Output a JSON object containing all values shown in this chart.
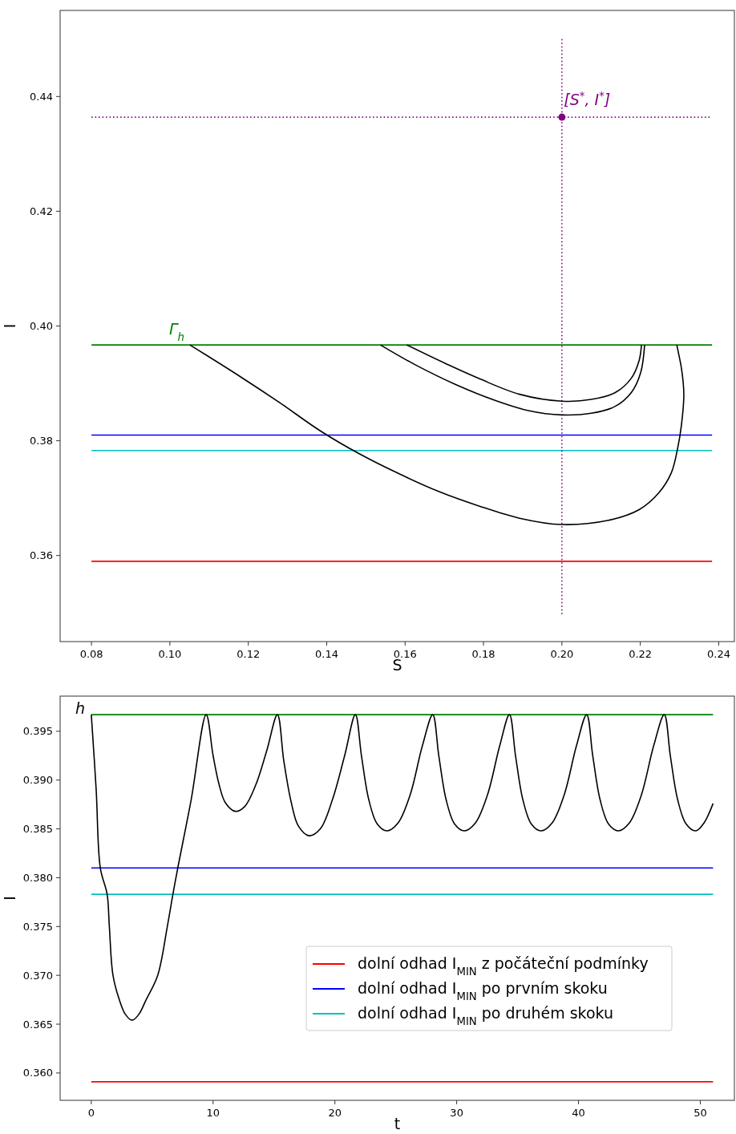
{
  "chart_data": [
    {
      "type": "line",
      "xlabel": "S",
      "ylabel": "I",
      "xlim": [
        0.072,
        0.244
      ],
      "ylim": [
        0.345,
        0.455
      ],
      "xticks": [
        {
          "value": 0.08,
          "label": "0.08"
        },
        {
          "value": 0.1,
          "label": "0.10"
        },
        {
          "value": 0.12,
          "label": "0.12"
        },
        {
          "value": 0.14,
          "label": "0.14"
        },
        {
          "value": 0.16,
          "label": "0.16"
        },
        {
          "value": 0.18,
          "label": "0.18"
        },
        {
          "value": 0.2,
          "label": "0.20"
        },
        {
          "value": 0.22,
          "label": "0.22"
        },
        {
          "value": 0.24,
          "label": "0.24"
        }
      ],
      "yticks": [
        0.36,
        0.38,
        {
          "value": 0.4,
          "label": "0.40"
        },
        0.42,
        0.44
      ],
      "annotations": [
        "Γ$_{h}$",
        {
          "text": "[S$^{*}$, I$^{*}$]",
          "x": 0.2005,
          "y": 0.4385
        }
      ],
      "series": [
        {
          "color": "#008000",
          "x": [
            0.08,
            0.2383
          ],
          "values": [
            0.3967,
            0.3967
          ]
        },
        {
          "color": "#0000ff",
          "x": [
            0.08,
            0.2383
          ],
          "values": [
            0.381,
            0.381
          ]
        },
        {
          "color": "#00bfbf",
          "x": [
            0.08,
            0.2383
          ],
          "values": [
            0.3783,
            0.3783
          ]
        },
        {
          "color": "#ff0000",
          "x": [
            0.08,
            0.2383
          ],
          "values": [
            0.359,
            0.359
          ]
        },
        {
          "color": "#800080",
          "line_style": "dotted",
          "x": [
            0.08,
            0.2383
          ],
          "values": [
            0.4364,
            0.4364
          ]
        },
        {
          "color": "#800080",
          "line_style": "dotted",
          "x": [
            0.2,
            0.2
          ],
          "values": [
            0.3498,
            0.45
          ]
        },
        {
          "type": "scatter",
          "marker": "circle",
          "color": "#800080",
          "x": [
            0.2
          ],
          "values": [
            0.4364
          ]
        },
        {
          "color": "#000000",
          "x": [
            0.1051,
            0.1179,
            0.1281,
            0.1382,
            0.1484,
            0.1586,
            0.1688,
            0.179,
            0.1892,
            0.2,
            0.2116,
            0.2197,
            0.2248,
            0.2279,
            0.2295,
            0.2305,
            0.2311,
            0.2305,
            0.2293
          ],
          "values": [
            0.3967,
            0.3912,
            0.3866,
            0.3818,
            0.3777,
            0.3742,
            0.3711,
            0.3686,
            0.3665,
            0.3654,
            0.3661,
            0.368,
            0.371,
            0.3744,
            0.3786,
            0.3828,
            0.3881,
            0.3926,
            0.3967
          ]
        },
        {
          "color": "#000000",
          "x": [
            0.1604,
            0.1708,
            0.179,
            0.1892,
            0.2,
            0.2075,
            0.2136,
            0.2177,
            0.2197,
            0.2203
          ],
          "values": [
            0.3967,
            0.3933,
            0.3908,
            0.3881,
            0.3869,
            0.3872,
            0.3884,
            0.3909,
            0.394,
            0.3967
          ]
        },
        {
          "color": "#000000",
          "x": [
            0.1537,
            0.1627,
            0.1729,
            0.1831,
            0.1912,
            0.2,
            0.2075,
            0.2136,
            0.2177,
            0.2201,
            0.2211
          ],
          "values": [
            0.3967,
            0.3932,
            0.3898,
            0.387,
            0.3853,
            0.3845,
            0.3848,
            0.386,
            0.3884,
            0.3919,
            0.3967
          ]
        }
      ]
    },
    {
      "type": "line",
      "xlabel": "t",
      "ylabel": "I",
      "xlim": [
        -2.56,
        52.8
      ],
      "ylim": [
        0.3572,
        0.3986
      ],
      "xticks": [
        0,
        10,
        20,
        30,
        40,
        50
      ],
      "yticks": [
        {
          "value": 0.36,
          "label": "0.360"
        },
        {
          "value": 0.365,
          "label": "0.365"
        },
        {
          "value": 0.37,
          "label": "0.370"
        },
        {
          "value": 0.375,
          "label": "0.375"
        },
        {
          "value": 0.38,
          "label": "0.380"
        },
        {
          "value": 0.385,
          "label": "0.385"
        },
        {
          "value": 0.39,
          "label": "0.390"
        },
        {
          "value": 0.395,
          "label": "0.395"
        }
      ],
      "legend": "bottom right",
      "annotations": [
        "h"
      ],
      "series": [
        {
          "color": "#008000",
          "x": [
            0,
            51.05
          ],
          "values": [
            0.3967,
            0.3967
          ]
        },
        {
          "name": "dolní odhad I$_{MIN}$ z počáteční podmínky",
          "color": "#ff0000",
          "x": [
            0,
            51.05
          ],
          "values": [
            0.3591,
            0.3591
          ]
        },
        {
          "name": "dolní odhad I$_{MIN}$ po prvním skoku",
          "color": "#0000ff",
          "x": [
            0,
            51.05
          ],
          "values": [
            0.381,
            0.381
          ]
        },
        {
          "name": "dolní odhad I$_{MIN}$ po druhém skoku",
          "color": "#00bfbf",
          "x": [
            0,
            51.05
          ],
          "values": [
            0.3783,
            0.3783
          ]
        },
        {
          "color": "#000000",
          "x": [
            0,
            0.4,
            0.74,
            1.3,
            1.48,
            1.78,
            2.3,
            2.8,
            3.35,
            3.9,
            4.5,
            5.45,
            6.24,
            6.7,
            7.1,
            8.2,
            9.43,
            10.0,
            10.5,
            11.0,
            11.83,
            12.6,
            13.5,
            14.4,
            15.28,
            15.8,
            16.4,
            17.0,
            17.87,
            18.8,
            19.8,
            20.8,
            21.68,
            22.18,
            22.78,
            23.48,
            24.28,
            25.18,
            26.18,
            27.18,
            28.03,
            28.53,
            29.13,
            29.83,
            30.63,
            31.53,
            32.53,
            33.53,
            34.33,
            34.83,
            35.43,
            36.13,
            36.93,
            37.83,
            38.83,
            39.83,
            40.67,
            41.17,
            41.77,
            42.47,
            43.27,
            44.17,
            45.17,
            46.17,
            47.04,
            47.54,
            48.14,
            48.84,
            49.64,
            50.3,
            51.05
          ],
          "values": [
            0.3967,
            0.389,
            0.381,
            0.3783,
            0.375,
            0.37,
            0.3675,
            0.366,
            0.3654,
            0.366,
            0.3675,
            0.37,
            0.375,
            0.3783,
            0.381,
            0.388,
            0.3967,
            0.3925,
            0.3895,
            0.3877,
            0.3868,
            0.3873,
            0.3895,
            0.393,
            0.3967,
            0.392,
            0.3878,
            0.3853,
            0.3843,
            0.385,
            0.388,
            0.3925,
            0.3967,
            0.3925,
            0.388,
            0.3855,
            0.3848,
            0.3856,
            0.3885,
            0.3935,
            0.3967,
            0.3925,
            0.388,
            0.3855,
            0.3848,
            0.3856,
            0.3885,
            0.3935,
            0.3967,
            0.3925,
            0.388,
            0.3855,
            0.3848,
            0.3856,
            0.3885,
            0.3935,
            0.3967,
            0.3925,
            0.388,
            0.3855,
            0.3848,
            0.3856,
            0.3885,
            0.3935,
            0.3967,
            0.3925,
            0.388,
            0.3855,
            0.3848,
            0.3856,
            0.3876
          ]
        }
      ]
    }
  ]
}
